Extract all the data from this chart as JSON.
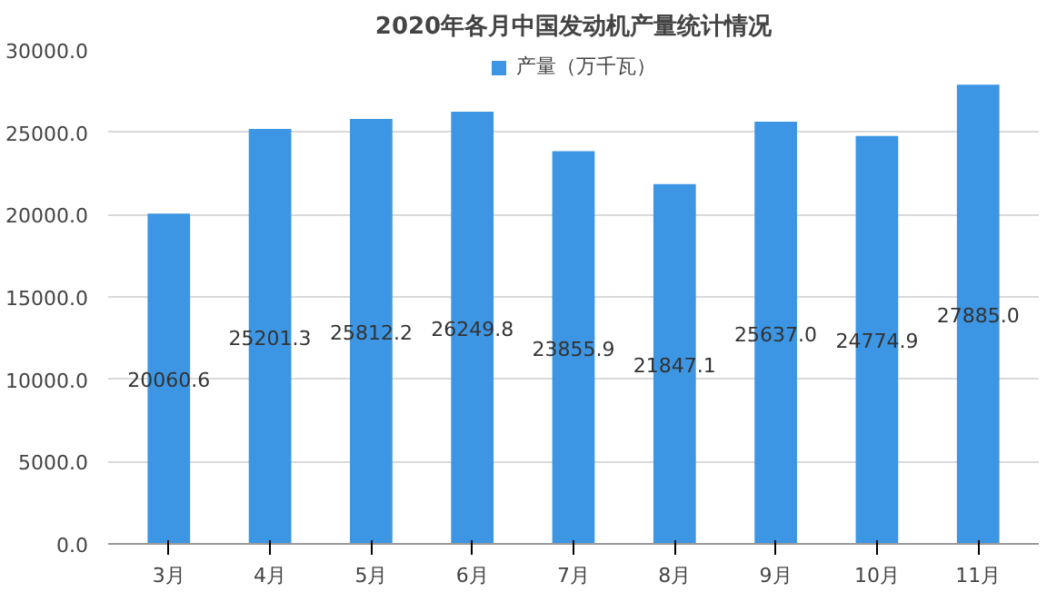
{
  "chart_data": {
    "type": "bar",
    "title": "2020年各月中国发动机产量统计情况",
    "categories": [
      "3月",
      "4月",
      "5月",
      "6月",
      "7月",
      "8月",
      "9月",
      "10月",
      "11月"
    ],
    "series": [
      {
        "name": "产量（万千瓦）",
        "color": "#3d96e3",
        "values": [
          20060.6,
          25201.3,
          25812.2,
          26249.8,
          23855.9,
          21847.1,
          25637.0,
          24774.9,
          27885.0
        ]
      }
    ],
    "value_labels": [
      "20060.6",
      "25201.3",
      "25812.2",
      "26249.8",
      "23855.9",
      "21847.1",
      "25637.0",
      "24774.9",
      "27885.0"
    ],
    "ylim": [
      0,
      30000
    ],
    "yticks": [
      {
        "value": 0,
        "label": "0.0"
      },
      {
        "value": 5000,
        "label": "5000.0"
      },
      {
        "value": 10000,
        "label": "10000.0"
      },
      {
        "value": 15000,
        "label": "15000.0"
      },
      {
        "value": 20000,
        "label": "20000.0"
      },
      {
        "value": 25000,
        "label": "25000.0"
      },
      {
        "value": 30000,
        "label": "30000.0"
      }
    ],
    "grid": "y",
    "legend": "top"
  }
}
